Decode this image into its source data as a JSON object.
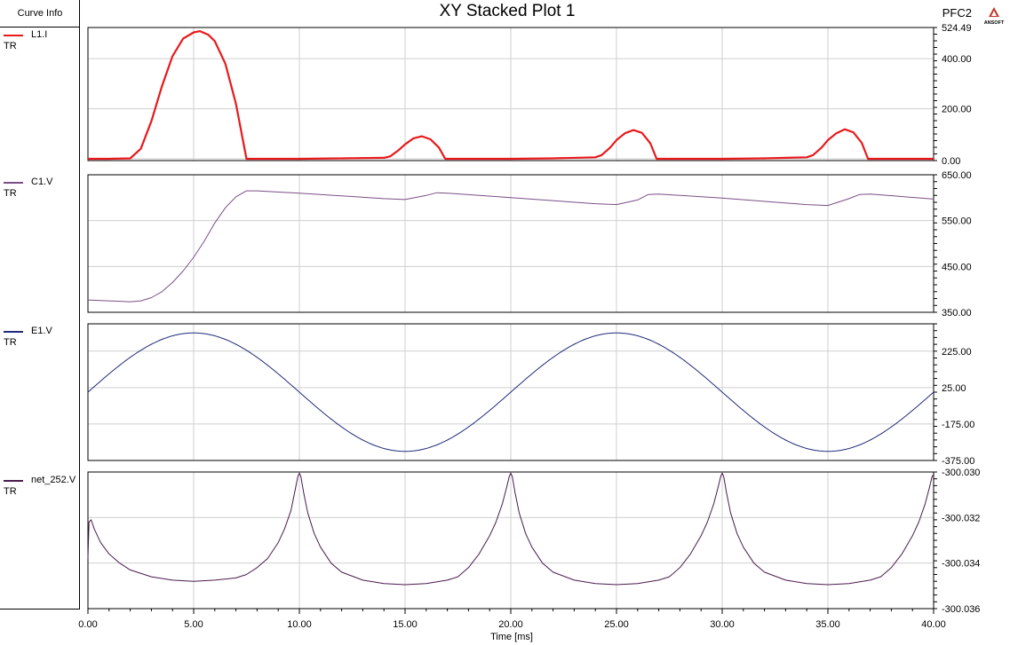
{
  "header": {
    "sidebar_title": "Curve Info",
    "plot_title": "XY Stacked Plot 1",
    "project": "PFC2",
    "logo_text": "ANSOFT"
  },
  "chart_data": {
    "type": "line",
    "title": "XY Stacked Plot 1",
    "xlabel": "Time [ms]",
    "xlim": [
      0,
      40
    ],
    "xticks": [
      "0.00",
      "5.00",
      "10.00",
      "15.00",
      "20.00",
      "25.00",
      "30.00",
      "35.00",
      "40.00"
    ],
    "grid": true,
    "panels": [
      {
        "name": "L1.I",
        "sub": "TR",
        "color": "#e8191b",
        "ylim": [
          -7,
          524.49
        ],
        "yticks": [
          "524.49",
          "400.00",
          "200.00",
          "0.00"
        ],
        "x": [
          0,
          1,
          2,
          2.5,
          3,
          3.5,
          4,
          4.5,
          5,
          5.3,
          5.7,
          6,
          6.5,
          7,
          7.5,
          8,
          10,
          12,
          14,
          14.3,
          14.7,
          15,
          15.4,
          15.8,
          16.2,
          16.6,
          16.9,
          17.5,
          20,
          22,
          24,
          24.3,
          24.7,
          25,
          25.4,
          25.8,
          26.2,
          26.6,
          26.9,
          27.5,
          30,
          32,
          34,
          34.3,
          34.7,
          35,
          35.4,
          35.8,
          36.2,
          36.6,
          36.9,
          37.5,
          40
        ],
        "y": [
          0,
          0,
          2,
          40,
          150,
          290,
          410,
          480,
          505,
          510,
          495,
          470,
          380,
          220,
          0,
          0,
          0,
          2,
          4,
          10,
          35,
          58,
          82,
          90,
          78,
          45,
          0,
          0,
          0,
          2,
          6,
          15,
          45,
          75,
          102,
          115,
          104,
          62,
          0,
          0,
          0,
          2,
          6,
          15,
          45,
          75,
          102,
          118,
          106,
          64,
          0,
          0,
          0
        ]
      },
      {
        "name": "C1.V",
        "sub": "TR",
        "color": "#7b4e86",
        "ylim": [
          350,
          650
        ],
        "yticks": [
          "650.00",
          "550.00",
          "450.00",
          "350.00"
        ],
        "x": [
          0,
          1,
          2,
          2.5,
          3,
          3.5,
          4,
          4.5,
          5,
          5.5,
          6,
          6.5,
          7,
          7.5,
          8,
          10,
          12,
          14,
          15,
          16,
          16.5,
          17,
          20,
          24,
          25,
          26,
          26.5,
          27,
          30,
          34,
          35,
          36,
          36.5,
          37,
          40
        ],
        "y": [
          377,
          375,
          373,
          375,
          382,
          395,
          415,
          440,
          470,
          505,
          545,
          578,
          602,
          615,
          615,
          610,
          604,
          598,
          596,
          605,
          611,
          610,
          600,
          587,
          585,
          595,
          607,
          608,
          599,
          585,
          583,
          598,
          607,
          608,
          597
        ]
      },
      {
        "name": "E1.V",
        "sub": "TR",
        "color": "#1f2a7a",
        "ylim": [
          -375,
          375
        ],
        "yticks": [
          "225.00",
          "25.00",
          "-175.00",
          "-375.00"
        ],
        "wave": {
          "kind": "sine",
          "amplitude": 325,
          "period_ms": 20
        },
        "x": [],
        "y": []
      },
      {
        "name": "net_252.V",
        "sub": "TR",
        "color": "#4a1a4e",
        "ylim": [
          -300.036,
          -300.03
        ],
        "yticks": [
          "-300.030",
          "-300.032",
          "-300.034",
          "-300.036"
        ],
        "x": [
          0,
          0.05,
          0.15,
          0.3,
          0.6,
          1,
          1.5,
          2,
          3,
          4,
          5,
          6,
          7,
          7.5,
          8,
          8.5,
          9,
          9.3,
          9.6,
          9.8,
          9.93,
          10,
          10.07,
          10.2,
          10.4,
          10.7,
          11,
          11.5,
          12,
          13,
          14,
          15,
          16,
          17,
          17.5,
          18,
          18.5,
          19,
          19.3,
          19.6,
          19.8,
          19.93,
          20,
          20.07,
          20.2,
          20.4,
          20.7,
          21,
          21.5,
          22,
          23,
          24,
          25,
          26,
          27,
          27.5,
          28,
          28.5,
          29,
          29.3,
          29.6,
          29.8,
          29.93,
          30,
          30.07,
          30.2,
          30.4,
          30.7,
          31,
          31.5,
          32,
          33,
          34,
          35,
          36,
          37,
          37.5,
          38,
          38.5,
          39,
          39.3,
          39.6,
          39.8,
          39.93,
          40
        ],
        "y": [
          -300.0338,
          -300.0322,
          -300.0321,
          -300.0325,
          -300.0331,
          -300.0336,
          -300.034,
          -300.0343,
          -300.0346,
          -300.03475,
          -300.0348,
          -300.03475,
          -300.03465,
          -300.0345,
          -300.0342,
          -300.0338,
          -300.0331,
          -300.0325,
          -300.0317,
          -300.0308,
          -300.0302,
          -300.03005,
          -300.0302,
          -300.0309,
          -300.0318,
          -300.0327,
          -300.0333,
          -300.034,
          -300.0344,
          -300.03475,
          -300.0349,
          -300.03495,
          -300.0349,
          -300.03475,
          -300.0346,
          -300.0342,
          -300.0336,
          -300.0328,
          -300.0322,
          -300.0314,
          -300.0307,
          -300.0302,
          -300.03005,
          -300.0302,
          -300.0309,
          -300.0318,
          -300.0327,
          -300.0333,
          -300.034,
          -300.0344,
          -300.03475,
          -300.0349,
          -300.03495,
          -300.0349,
          -300.03475,
          -300.0346,
          -300.0342,
          -300.0336,
          -300.0328,
          -300.0322,
          -300.0314,
          -300.0307,
          -300.0302,
          -300.03005,
          -300.0302,
          -300.0309,
          -300.0318,
          -300.0327,
          -300.0333,
          -300.034,
          -300.0344,
          -300.03475,
          -300.0349,
          -300.03495,
          -300.0349,
          -300.03475,
          -300.0346,
          -300.0342,
          -300.0336,
          -300.0328,
          -300.0322,
          -300.0314,
          -300.0307,
          -300.0302,
          -300.0301
        ]
      }
    ]
  }
}
